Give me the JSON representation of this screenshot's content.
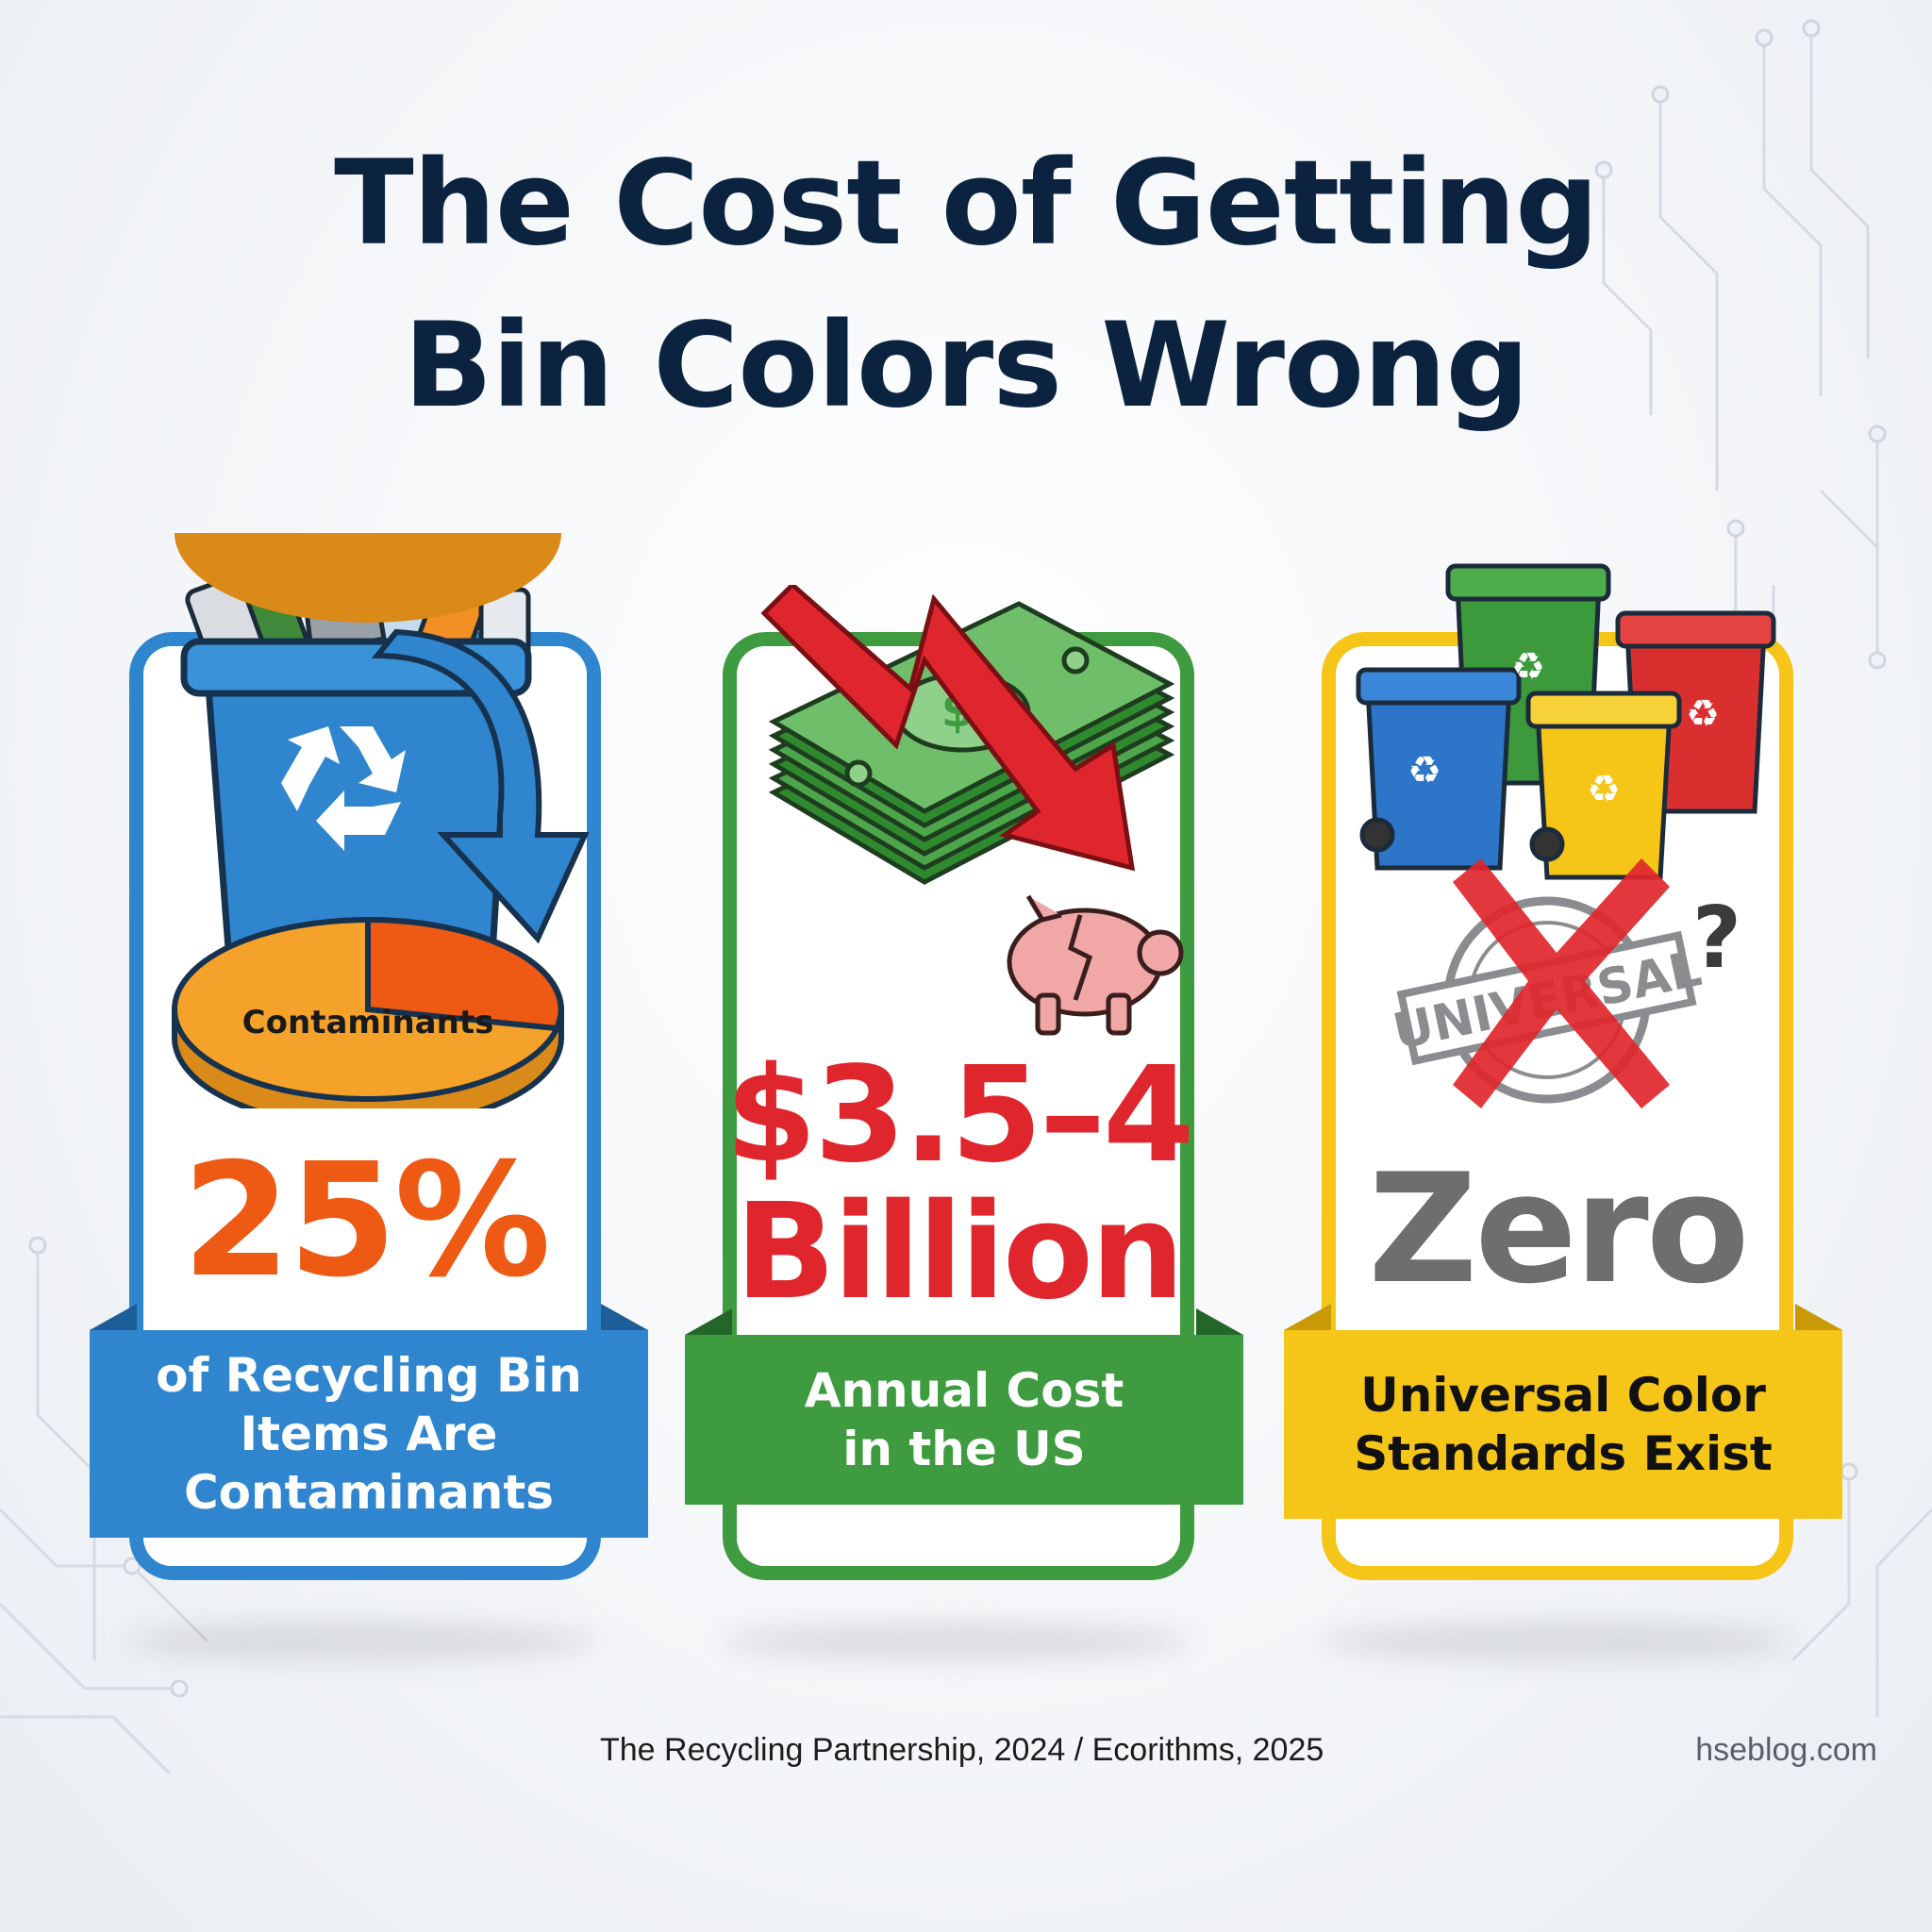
{
  "title": {
    "line1": "The Cost of Getting",
    "line2": "Bin Colors Wrong"
  },
  "cards": [
    {
      "stat": "25%",
      "pie_label": "Contaminants",
      "pie_fraction": 0.25,
      "caption": [
        "of Recycling Bin",
        "Items Are",
        "Contaminants"
      ],
      "color": "#2f86cf",
      "stat_color": "#ee5a14",
      "icons": [
        "recycling-bin-icon",
        "recycle-symbol-icon",
        "pie-chart-icon",
        "curved-arrow-icon"
      ]
    },
    {
      "stat": [
        "$3.5–4",
        "Billion"
      ],
      "caption": [
        "Annual Cost",
        "in the US"
      ],
      "color": "#3e9b3f",
      "stat_color": "#e0262d",
      "icons": [
        "money-stack-icon",
        "down-trend-arrow-icon",
        "broken-piggy-bank-icon"
      ]
    },
    {
      "stat": "Zero",
      "stamp_text": "UNIVERSAL",
      "question_mark": "?",
      "caption": [
        "Universal Color",
        "Standards Exist"
      ],
      "color": "#f5c518",
      "stat_color": "#6d6e70",
      "icons": [
        "colored-bins-icon",
        "universal-stamp-icon",
        "red-x-icon",
        "question-mark-icon"
      ]
    }
  ],
  "footer": {
    "source": "The Recycling Partnership, 2024 / Ecorithms, 2025",
    "site": "hseblog.com"
  }
}
